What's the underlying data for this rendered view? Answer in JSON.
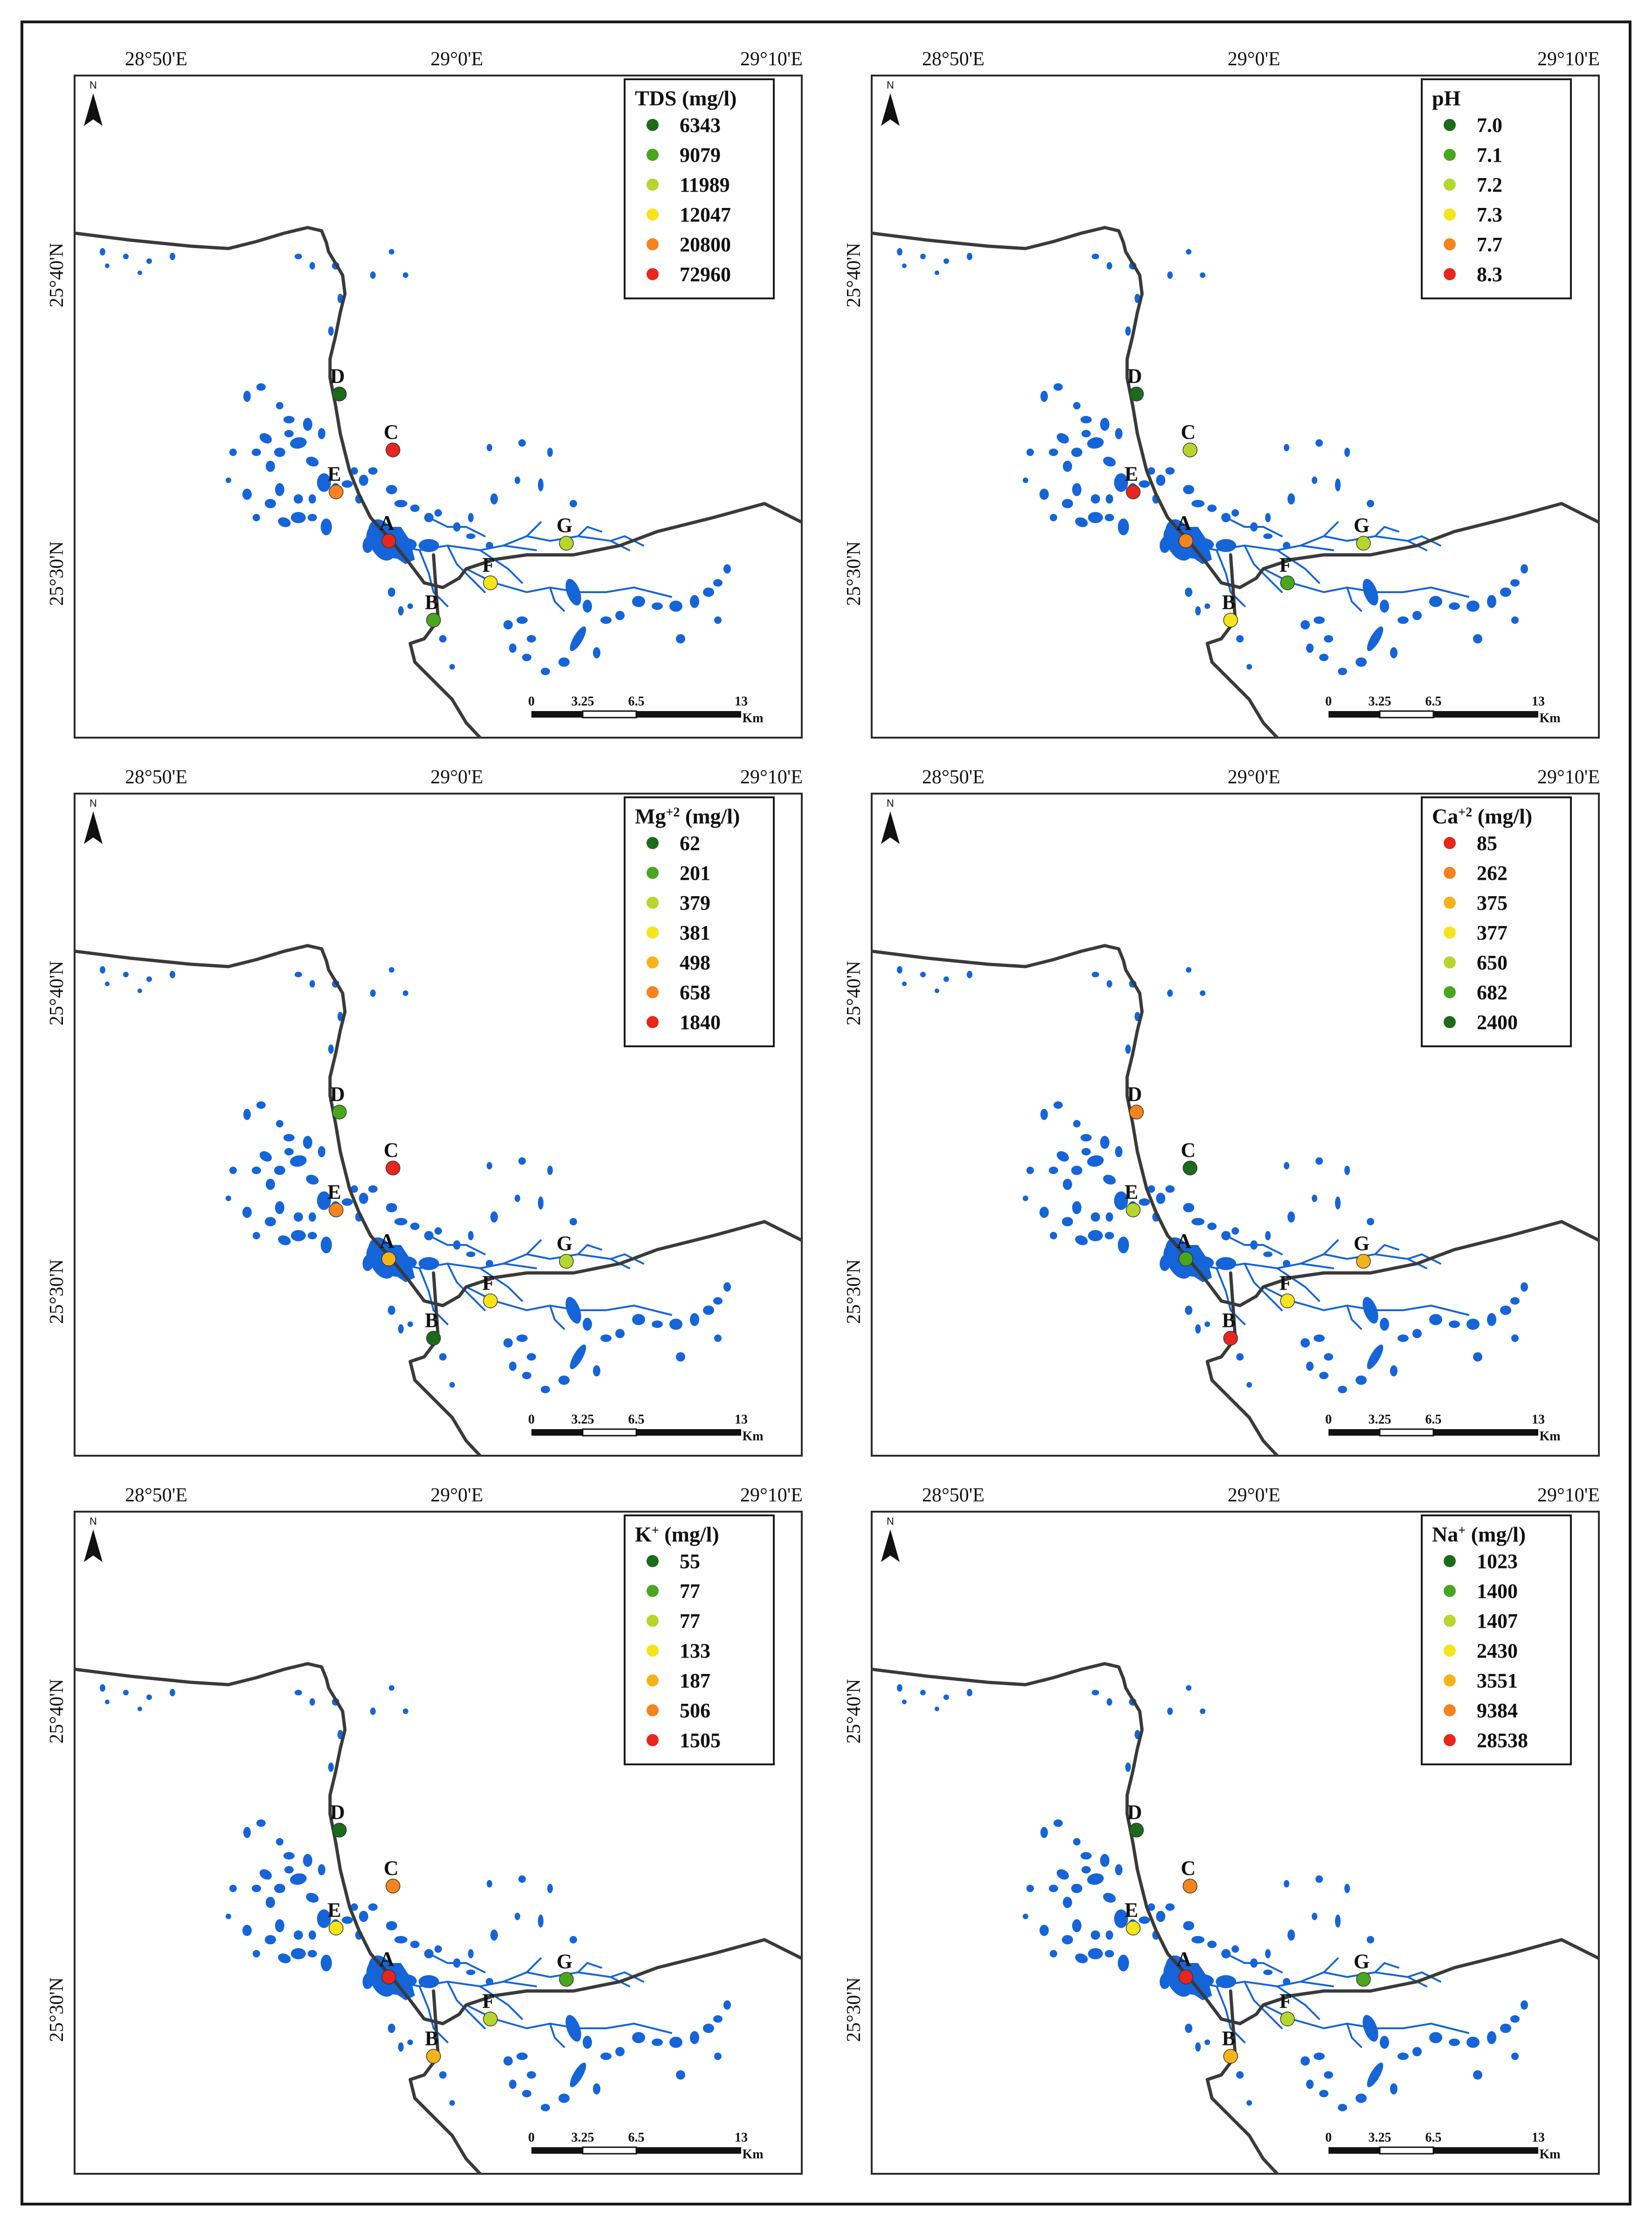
{
  "axes": {
    "x_ticks": [
      "28°50'E",
      "29°0'E",
      "29°10'E"
    ],
    "y_ticks": [
      "25°40'N",
      "25°30'N"
    ]
  },
  "north": "N",
  "scalebar": {
    "labels": [
      "0",
      "3.25",
      "6.5",
      "13"
    ],
    "unit": "Km"
  },
  "sites": [
    "A",
    "B",
    "C",
    "D",
    "E",
    "F",
    "G"
  ],
  "panels": [
    {
      "id": "tds",
      "title": "TDS (mg/l)",
      "legend": [
        {
          "value": "6343",
          "color": "#1b6b1b"
        },
        {
          "value": "9079",
          "color": "#4aa61e"
        },
        {
          "value": "11989",
          "color": "#b5d62c"
        },
        {
          "value": "12047",
          "color": "#f5e41a"
        },
        {
          "value": "20800",
          "color": "#f5841f"
        },
        {
          "value": "72960",
          "color": "#e8261c"
        }
      ],
      "site_colors": {
        "A": "#e8261c",
        "B": "#4aa61e",
        "C": "#e8261c",
        "D": "#1b6b1b",
        "E": "#f5841f",
        "F": "#f5e41a",
        "G": "#b5d62c"
      }
    },
    {
      "id": "ph",
      "title": "pH",
      "legend": [
        {
          "value": "7.0",
          "color": "#1b6b1b"
        },
        {
          "value": "7.1",
          "color": "#4aa61e"
        },
        {
          "value": "7.2",
          "color": "#b5d62c"
        },
        {
          "value": "7.3",
          "color": "#f5e41a"
        },
        {
          "value": "7.7",
          "color": "#f5841f"
        },
        {
          "value": "8.3",
          "color": "#e8261c"
        }
      ],
      "site_colors": {
        "A": "#f5841f",
        "B": "#f5e41a",
        "C": "#b5d62c",
        "D": "#1b6b1b",
        "E": "#e8261c",
        "F": "#4aa61e",
        "G": "#b5d62c"
      }
    },
    {
      "id": "mg",
      "title_main": "Mg",
      "title_sup": "+2",
      "title_unit": " (mg/l)",
      "legend": [
        {
          "value": "62",
          "color": "#1b6b1b"
        },
        {
          "value": "201",
          "color": "#4aa61e"
        },
        {
          "value": "379",
          "color": "#b5d62c"
        },
        {
          "value": "381",
          "color": "#f5e41a"
        },
        {
          "value": "498",
          "color": "#f5b31a"
        },
        {
          "value": "658",
          "color": "#f5841f"
        },
        {
          "value": "1840",
          "color": "#e8261c"
        }
      ],
      "site_colors": {
        "A": "#f5b31a",
        "B": "#1b6b1b",
        "C": "#e8261c",
        "D": "#4aa61e",
        "E": "#f5841f",
        "F": "#f5e41a",
        "G": "#b5d62c"
      }
    },
    {
      "id": "ca",
      "title_main": "Ca",
      "title_sup": "+2",
      "title_unit": " (mg/l)",
      "legend": [
        {
          "value": "85",
          "color": "#e8261c"
        },
        {
          "value": "262",
          "color": "#f5841f"
        },
        {
          "value": "375",
          "color": "#f5b31a"
        },
        {
          "value": "377",
          "color": "#f5e41a"
        },
        {
          "value": "650",
          "color": "#b5d62c"
        },
        {
          "value": "682",
          "color": "#4aa61e"
        },
        {
          "value": "2400",
          "color": "#1b6b1b"
        }
      ],
      "site_colors": {
        "A": "#4aa61e",
        "B": "#e8261c",
        "C": "#1b6b1b",
        "D": "#f5841f",
        "E": "#b5d62c",
        "F": "#f5e41a",
        "G": "#f5b31a"
      }
    },
    {
      "id": "k",
      "title_main": "K",
      "title_sup": "+",
      "title_unit": " (mg/l)",
      "legend": [
        {
          "value": "55",
          "color": "#1b6b1b"
        },
        {
          "value": "77",
          "color": "#4aa61e"
        },
        {
          "value": "77",
          "color": "#b5d62c"
        },
        {
          "value": "133",
          "color": "#f5e41a"
        },
        {
          "value": "187",
          "color": "#f5b31a"
        },
        {
          "value": "506",
          "color": "#f5841f"
        },
        {
          "value": "1505",
          "color": "#e8261c"
        }
      ],
      "site_colors": {
        "A": "#e8261c",
        "B": "#f5b31a",
        "C": "#f5841f",
        "D": "#1b6b1b",
        "E": "#f5e41a",
        "F": "#b5d62c",
        "G": "#4aa61e"
      }
    },
    {
      "id": "na",
      "title_main": "Na",
      "title_sup": "+",
      "title_unit": " (mg/l)",
      "legend": [
        {
          "value": "1023",
          "color": "#1b6b1b"
        },
        {
          "value": "1400",
          "color": "#4aa61e"
        },
        {
          "value": "1407",
          "color": "#b5d62c"
        },
        {
          "value": "2430",
          "color": "#f5e41a"
        },
        {
          "value": "3551",
          "color": "#f5b31a"
        },
        {
          "value": "9384",
          "color": "#f5841f"
        },
        {
          "value": "28538",
          "color": "#e8261c"
        }
      ],
      "site_colors": {
        "A": "#e8261c",
        "B": "#f5b31a",
        "C": "#f5841f",
        "D": "#1b6b1b",
        "E": "#f5e41a",
        "F": "#b5d62c",
        "G": "#4aa61e"
      }
    }
  ]
}
